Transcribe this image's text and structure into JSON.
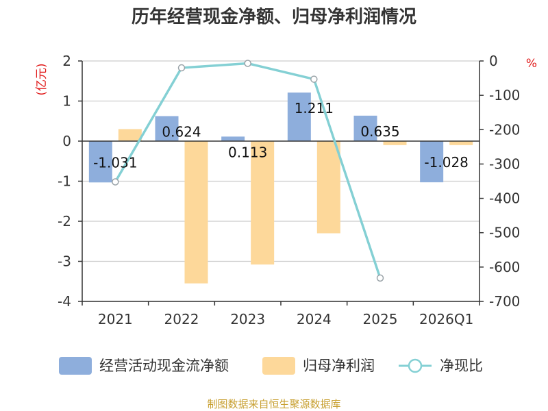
{
  "title": "历年经营现金净额、归母净利润情况",
  "source": "制图数据来自恒生聚源数据库",
  "chart_data": {
    "type": "bar",
    "categories": [
      "2021",
      "2022",
      "2023",
      "2024",
      "2025",
      "2026Q1"
    ],
    "series": [
      {
        "name": "经营活动现金流净额",
        "type": "bar",
        "axis": "left",
        "color": "#8eaedc",
        "values": [
          -1.031,
          0.624,
          0.113,
          1.211,
          0.635,
          -1.028
        ],
        "labels": [
          "-1.031",
          "0.624",
          "0.113",
          "1.211",
          "0.635",
          "-1.028"
        ]
      },
      {
        "name": "归母净利润",
        "type": "bar",
        "axis": "left",
        "color": "#fdd89a",
        "values": [
          0.3,
          -3.55,
          -3.08,
          -2.3,
          -0.1,
          -0.1
        ]
      },
      {
        "name": "净现比",
        "type": "line",
        "axis": "right",
        "color": "#84d0d4",
        "values": [
          -352,
          -20,
          -7,
          -53,
          -632,
          null
        ]
      }
    ],
    "y_left": {
      "unit": "(亿元)",
      "ylim": [
        -4,
        2
      ],
      "ticks": [
        -4,
        -3,
        -2,
        -1,
        0,
        1,
        2
      ]
    },
    "y_right": {
      "unit": "%",
      "ylim": [
        -700,
        0
      ],
      "ticks": [
        -700,
        -600,
        -500,
        -400,
        -300,
        -200,
        -100,
        0
      ]
    },
    "grid": true,
    "legend": "bottom"
  }
}
